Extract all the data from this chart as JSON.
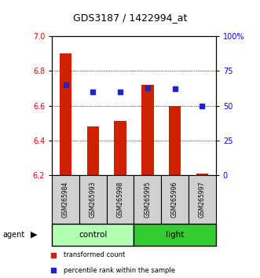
{
  "title": "GDS3187 / 1422994_at",
  "samples": [
    "GSM265984",
    "GSM265993",
    "GSM265998",
    "GSM265995",
    "GSM265996",
    "GSM265997"
  ],
  "bar_values": [
    6.9,
    6.48,
    6.51,
    6.72,
    6.6,
    6.21
  ],
  "bar_bottom": 6.2,
  "pct_raw": [
    65,
    60,
    60,
    63,
    62,
    50
  ],
  "ylim_left": [
    6.2,
    7.0
  ],
  "ylim_right": [
    0,
    100
  ],
  "yticks_left": [
    6.2,
    6.4,
    6.6,
    6.8,
    7.0
  ],
  "yticks_right": [
    0,
    25,
    50,
    75,
    100
  ],
  "yticklabels_right": [
    "0",
    "25",
    "50",
    "75",
    "100%"
  ],
  "grid_lines": [
    6.4,
    6.6,
    6.8
  ],
  "groups": [
    {
      "label": "control",
      "indices": [
        0,
        1,
        2
      ],
      "color": "#b3ffb3"
    },
    {
      "label": "light",
      "indices": [
        3,
        4,
        5
      ],
      "color": "#33cc33"
    }
  ],
  "group_label": "agent",
  "bar_color": "#cc2200",
  "dot_color": "#2222cc",
  "label_bg_color": "#d0d0d0",
  "legend_items": [
    {
      "label": "transformed count",
      "color": "#cc2200"
    },
    {
      "label": "percentile rank within the sample",
      "color": "#2222cc"
    }
  ]
}
